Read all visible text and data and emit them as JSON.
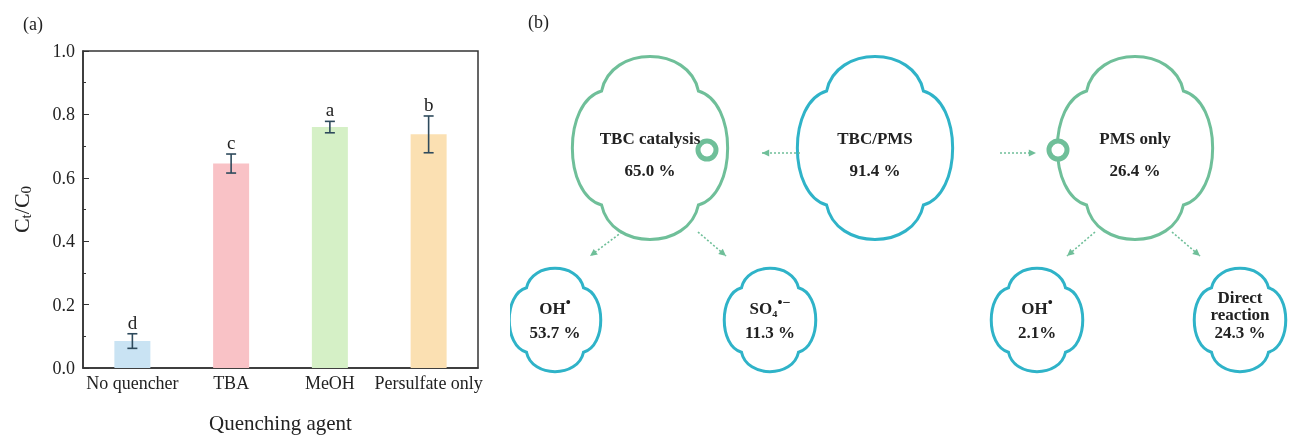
{
  "chart_data": [
    {
      "type": "bar",
      "title": "(a)",
      "xlabel": "Quenching agent",
      "ylabel": "C$_{t}$/C$_{0}$",
      "categories": [
        "No quencher",
        "TBA",
        "MeOH",
        "Persulfate only"
      ],
      "values": [
        0.085,
        0.645,
        0.76,
        0.737
      ],
      "errors": [
        0.023,
        0.03,
        0.018,
        0.058
      ],
      "colors": [
        "#c9e3f3",
        "#f9c2c6",
        "#d5f0c6",
        "#fbe0b2"
      ],
      "ylim": [
        0,
        1.0
      ],
      "yticks": [
        {
          "value": 0,
          "label": "0.0"
        },
        0.2,
        0.4,
        0.6,
        0.8,
        {
          "value": 1,
          "label": "1.0"
        }
      ],
      "grid": false,
      "annotations": [
        {
          "text": "d",
          "x": "No quencher",
          "y": 0.108
        },
        {
          "text": "c",
          "x": "TBA",
          "y": 0.675
        },
        {
          "text": "a",
          "x": "MeOH",
          "y": 0.778
        },
        {
          "text": "b",
          "x": "Persulfate only",
          "y": 0.795
        }
      ]
    },
    {
      "type": "other",
      "title": "(b)",
      "annotations": [
        "TBC catalysis",
        "65.0 %",
        "TBC/PMS",
        "91.4 %",
        "PMS only",
        "26.4 %",
        "OH$^{•}$",
        "53.7 %",
        "SO₄$^{•−}$",
        "11.3 %",
        "OH$^{•}$",
        "2.1%",
        "Direct reaction",
        "24.3 %"
      ]
    }
  ]
}
